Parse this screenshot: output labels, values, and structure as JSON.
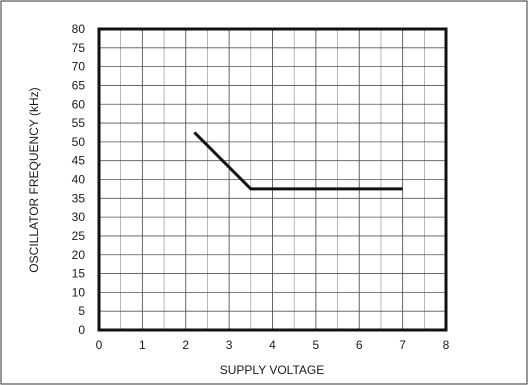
{
  "chart_data": {
    "type": "line",
    "xlabel": "SUPPLY VOLTAGE",
    "ylabel": "OSCILLATOR FREQUENCY (kHz)",
    "xlim": [
      0,
      8
    ],
    "ylim": [
      0,
      80
    ],
    "x_ticks": [
      "0",
      "1",
      "2",
      "3",
      "4",
      "5",
      "6",
      "7",
      "8"
    ],
    "y_ticks": [
      "0",
      "5",
      "10",
      "15",
      "20",
      "25",
      "30",
      "35",
      "40",
      "45",
      "50",
      "55",
      "60",
      "65",
      "70",
      "75",
      "80"
    ],
    "grid": true,
    "series": [
      {
        "x": [
          2.2,
          3.5,
          7.0
        ],
        "y": [
          52.5,
          37.5,
          37.5
        ]
      }
    ]
  }
}
